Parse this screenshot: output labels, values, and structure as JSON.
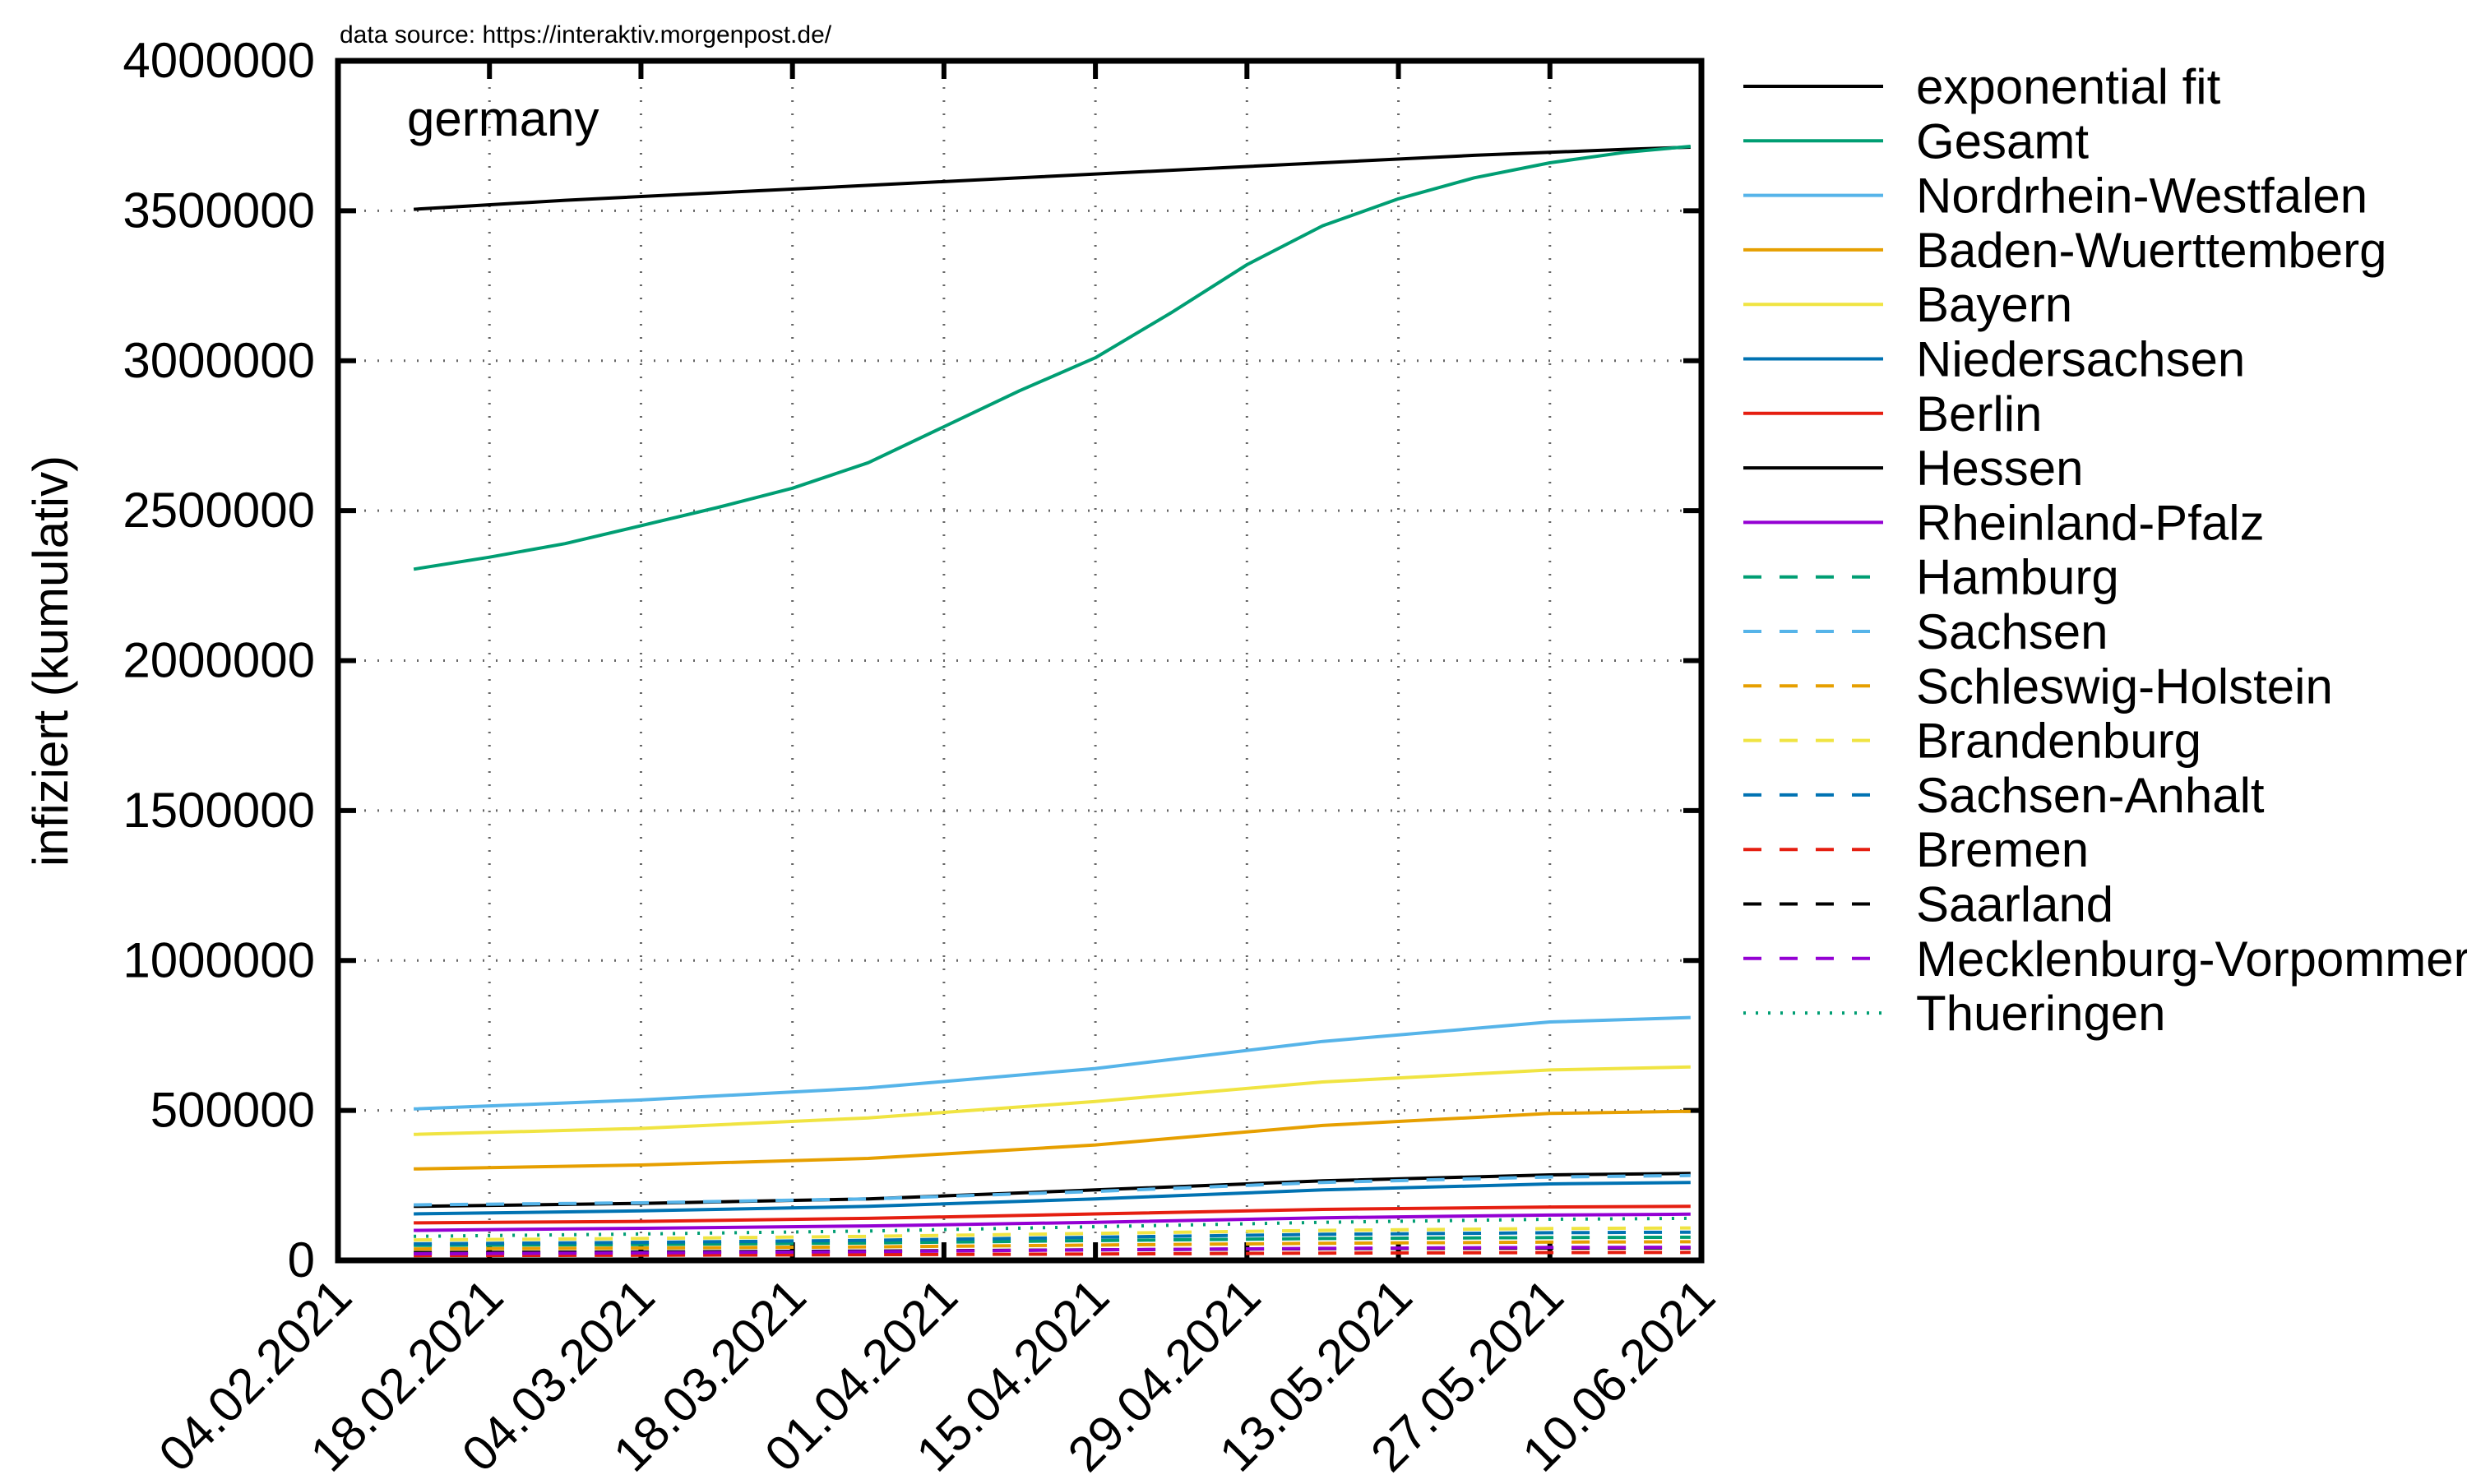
{
  "source_note": "data source: https://interaktiv.morgenpost.de/",
  "chart_data": {
    "type": "line",
    "title": "",
    "annotation": "germany",
    "xlabel": "",
    "ylabel": "infiziert (kumulativ)",
    "xlim": [
      "04.02.2021",
      "10.06.2021"
    ],
    "ylim": [
      0,
      4000000
    ],
    "x_ticks": [
      "04.02.2021",
      "18.02.2021",
      "04.03.2021",
      "18.03.2021",
      "01.04.2021",
      "15.04.2021",
      "29.04.2021",
      "13.05.2021",
      "27.05.2021",
      "10.06.2021"
    ],
    "y_ticks": [
      0,
      500000,
      1000000,
      1500000,
      2000000,
      2500000,
      3000000,
      3500000,
      4000000
    ],
    "grid": true,
    "legend_position": "outside-right",
    "series": [
      {
        "name": "exponential fit",
        "color": "#000000",
        "dash": "solid",
        "x": [
          "11.02.2021",
          "25.02.2021",
          "11.03.2021",
          "25.03.2021",
          "08.04.2021",
          "22.04.2021",
          "06.05.2021",
          "20.05.2021",
          "03.06.2021",
          "09.06.2021"
        ],
        "y": [
          3505000,
          3535000,
          3560000,
          3585000,
          3610000,
          3635000,
          3660000,
          3685000,
          3705000,
          3712000
        ]
      },
      {
        "name": "Gesamt",
        "color": "#009e73",
        "dash": "solid",
        "x": [
          "11.02.2021",
          "18.02.2021",
          "25.02.2021",
          "04.03.2021",
          "11.03.2021",
          "18.03.2021",
          "25.03.2021",
          "01.04.2021",
          "08.04.2021",
          "15.04.2021",
          "22.04.2021",
          "29.04.2021",
          "06.05.2021",
          "13.05.2021",
          "20.05.2021",
          "27.05.2021",
          "03.06.2021",
          "09.06.2021"
        ],
        "y": [
          2305000,
          2345000,
          2390000,
          2450000,
          2510000,
          2575000,
          2660000,
          2780000,
          2900000,
          3010000,
          3160000,
          3320000,
          3450000,
          3540000,
          3610000,
          3660000,
          3695000,
          3715000
        ]
      },
      {
        "name": "Nordrhein-Westfalen",
        "color": "#56b4e9",
        "dash": "solid",
        "x": [
          "11.02.2021",
          "04.03.2021",
          "25.03.2021",
          "15.04.2021",
          "06.05.2021",
          "27.05.2021",
          "09.06.2021"
        ],
        "y": [
          505000,
          535000,
          575000,
          640000,
          730000,
          795000,
          810000
        ]
      },
      {
        "name": "Baden-Wuerttemberg",
        "color": "#e69f00",
        "dash": "solid",
        "x": [
          "11.02.2021",
          "04.03.2021",
          "25.03.2021",
          "15.04.2021",
          "06.05.2021",
          "27.05.2021",
          "09.06.2021"
        ],
        "y": [
          305000,
          318000,
          340000,
          385000,
          450000,
          490000,
          497000
        ]
      },
      {
        "name": "Bayern",
        "color": "#f0e442",
        "dash": "solid",
        "x": [
          "11.02.2021",
          "04.03.2021",
          "25.03.2021",
          "15.04.2021",
          "06.05.2021",
          "27.05.2021",
          "09.06.2021"
        ],
        "y": [
          420000,
          440000,
          475000,
          530000,
          595000,
          635000,
          645000
        ]
      },
      {
        "name": "Niedersachsen",
        "color": "#0072b2",
        "dash": "solid",
        "x": [
          "11.02.2021",
          "04.03.2021",
          "25.03.2021",
          "15.04.2021",
          "06.05.2021",
          "27.05.2021",
          "09.06.2021"
        ],
        "y": [
          155000,
          165000,
          180000,
          205000,
          235000,
          255000,
          260000
        ]
      },
      {
        "name": "Berlin",
        "color": "#e51e10",
        "dash": "solid",
        "x": [
          "11.02.2021",
          "04.03.2021",
          "25.03.2021",
          "15.04.2021",
          "06.05.2021",
          "27.05.2021",
          "09.06.2021"
        ],
        "y": [
          125000,
          130000,
          140000,
          155000,
          170000,
          178000,
          180000
        ]
      },
      {
        "name": "Hessen",
        "color": "#000000",
        "dash": "solid",
        "x": [
          "11.02.2021",
          "04.03.2021",
          "25.03.2021",
          "15.04.2021",
          "06.05.2021",
          "27.05.2021",
          "09.06.2021"
        ],
        "y": [
          180000,
          190000,
          205000,
          235000,
          265000,
          285000,
          290000
        ]
      },
      {
        "name": "Rheinland-Pfalz",
        "color": "#9400d3",
        "dash": "solid",
        "x": [
          "11.02.2021",
          "04.03.2021",
          "25.03.2021",
          "15.04.2021",
          "06.05.2021",
          "27.05.2021",
          "09.06.2021"
        ],
        "y": [
          100000,
          107000,
          115000,
          127000,
          142000,
          151000,
          154000
        ]
      },
      {
        "name": "Hamburg",
        "color": "#009e73",
        "dash": "dashed",
        "x": [
          "11.02.2021",
          "04.03.2021",
          "25.03.2021",
          "15.04.2021",
          "06.05.2021",
          "27.05.2021",
          "09.06.2021"
        ],
        "y": [
          50000,
          53000,
          58000,
          66000,
          73000,
          76000,
          77000
        ]
      },
      {
        "name": "Sachsen",
        "color": "#56b4e9",
        "dash": "dashed",
        "x": [
          "11.02.2021",
          "04.03.2021",
          "25.03.2021",
          "15.04.2021",
          "06.05.2021",
          "27.05.2021",
          "09.06.2021"
        ],
        "y": [
          185000,
          192000,
          205000,
          230000,
          260000,
          278000,
          283000
        ]
      },
      {
        "name": "Schleswig-Holstein",
        "color": "#e69f00",
        "dash": "dashed",
        "x": [
          "11.02.2021",
          "04.03.2021",
          "25.03.2021",
          "15.04.2021",
          "06.05.2021",
          "27.05.2021",
          "09.06.2021"
        ],
        "y": [
          38000,
          41000,
          45000,
          51000,
          57000,
          61000,
          62000
        ]
      },
      {
        "name": "Brandenburg",
        "color": "#f0e442",
        "dash": "dashed",
        "x": [
          "11.02.2021",
          "04.03.2021",
          "25.03.2021",
          "15.04.2021",
          "06.05.2021",
          "27.05.2021",
          "09.06.2021"
        ],
        "y": [
          68000,
          73000,
          80000,
          90000,
          100000,
          106000,
          108000
        ]
      },
      {
        "name": "Sachsen-Anhalt",
        "color": "#0072b2",
        "dash": "dashed",
        "x": [
          "11.02.2021",
          "04.03.2021",
          "25.03.2021",
          "15.04.2021",
          "06.05.2021",
          "27.05.2021",
          "09.06.2021"
        ],
        "y": [
          55000,
          60000,
          67000,
          77000,
          87000,
          92000,
          94000
        ]
      },
      {
        "name": "Bremen",
        "color": "#e51e10",
        "dash": "dashed",
        "x": [
          "11.02.2021",
          "04.03.2021",
          "25.03.2021",
          "15.04.2021",
          "06.05.2021",
          "27.05.2021",
          "09.06.2021"
        ],
        "y": [
          16000,
          17000,
          19000,
          21000,
          24000,
          26000,
          26500
        ]
      },
      {
        "name": "Saarland",
        "color": "#000000",
        "dash": "dashed",
        "x": [
          "11.02.2021",
          "04.03.2021",
          "25.03.2021",
          "15.04.2021",
          "06.05.2021",
          "27.05.2021",
          "09.06.2021"
        ],
        "y": [
          26000,
          28000,
          31000,
          35000,
          39000,
          41000,
          41500
        ]
      },
      {
        "name": "Mecklenburg-Vorpommern",
        "color": "#9400d3",
        "dash": "dashed",
        "x": [
          "11.02.2021",
          "04.03.2021",
          "25.03.2021",
          "15.04.2021",
          "06.05.2021",
          "27.05.2021",
          "09.06.2021"
        ],
        "y": [
          22000,
          25000,
          29000,
          35000,
          40000,
          43000,
          43500
        ]
      },
      {
        "name": "Thueringen",
        "color": "#009e73",
        "dash": "dotted",
        "x": [
          "11.02.2021",
          "04.03.2021",
          "25.03.2021",
          "15.04.2021",
          "06.05.2021",
          "27.05.2021",
          "09.06.2021"
        ],
        "y": [
          80000,
          88000,
          98000,
          112000,
          127000,
          137000,
          140000
        ]
      }
    ]
  }
}
